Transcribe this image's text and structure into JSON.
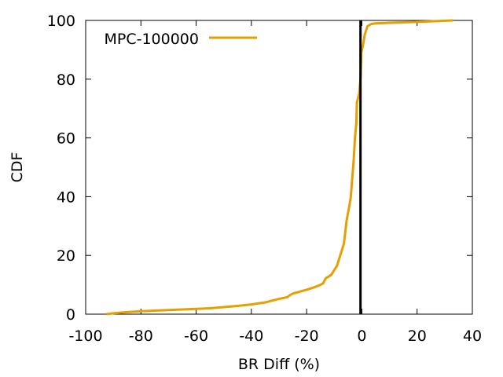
{
  "chart_data": {
    "type": "line",
    "xlabel": "BR Diff (%)",
    "ylabel": "CDF",
    "xlim": [
      -100,
      40
    ],
    "ylim": [
      0,
      100
    ],
    "x_ticks": [
      -100,
      -80,
      -60,
      -40,
      -20,
      0,
      20,
      40
    ],
    "y_ticks": [
      0,
      20,
      40,
      60,
      80,
      100
    ],
    "grid": false,
    "legend_position": "top-left",
    "series": [
      {
        "name": "MPC-100000",
        "color": "#e69f00",
        "points": [
          [
            -92.5,
            0
          ],
          [
            -90,
            0.3
          ],
          [
            -85,
            0.7
          ],
          [
            -80,
            1.0
          ],
          [
            -75,
            1.2
          ],
          [
            -70,
            1.4
          ],
          [
            -65,
            1.6
          ],
          [
            -60,
            1.8
          ],
          [
            -55,
            2.0
          ],
          [
            -50,
            2.4
          ],
          [
            -45,
            2.8
          ],
          [
            -40,
            3.3
          ],
          [
            -35,
            4.0
          ],
          [
            -33,
            4.5
          ],
          [
            -30,
            5.2
          ],
          [
            -27,
            5.8
          ],
          [
            -26,
            6.5
          ],
          [
            -25,
            7.0
          ],
          [
            -22,
            7.8
          ],
          [
            -20,
            8.3
          ],
          [
            -18,
            8.9
          ],
          [
            -16,
            9.6
          ],
          [
            -15,
            10.0
          ],
          [
            -14,
            10.5
          ],
          [
            -13.5,
            11.5
          ],
          [
            -13,
            12.3
          ],
          [
            -12,
            12.8
          ],
          [
            -11,
            13.5
          ],
          [
            -10,
            15.0
          ],
          [
            -9,
            16.5
          ],
          [
            -8.5,
            18.0
          ],
          [
            -7.5,
            21.0
          ],
          [
            -6.5,
            24.0
          ],
          [
            -6,
            28.0
          ],
          [
            -5.5,
            32.0
          ],
          [
            -4.5,
            37.0
          ],
          [
            -4,
            40.0
          ],
          [
            -3.5,
            46.0
          ],
          [
            -3,
            52.0
          ],
          [
            -2.5,
            60.0
          ],
          [
            -2,
            65.0
          ],
          [
            -1.8,
            72.0
          ],
          [
            -1,
            75.0
          ],
          [
            -0.5,
            80.0
          ],
          [
            -0.3,
            85.0
          ],
          [
            -0.2,
            89.0
          ],
          [
            0.5,
            92.0
          ],
          [
            1,
            95.0
          ],
          [
            2,
            98.0
          ],
          [
            3.5,
            98.8
          ],
          [
            5,
            99.0
          ],
          [
            10,
            99.2
          ],
          [
            20,
            99.5
          ],
          [
            33,
            100
          ]
        ]
      }
    ],
    "reference_lines": [
      {
        "axis": "x",
        "value": -0.5,
        "color": "#000000"
      }
    ]
  }
}
